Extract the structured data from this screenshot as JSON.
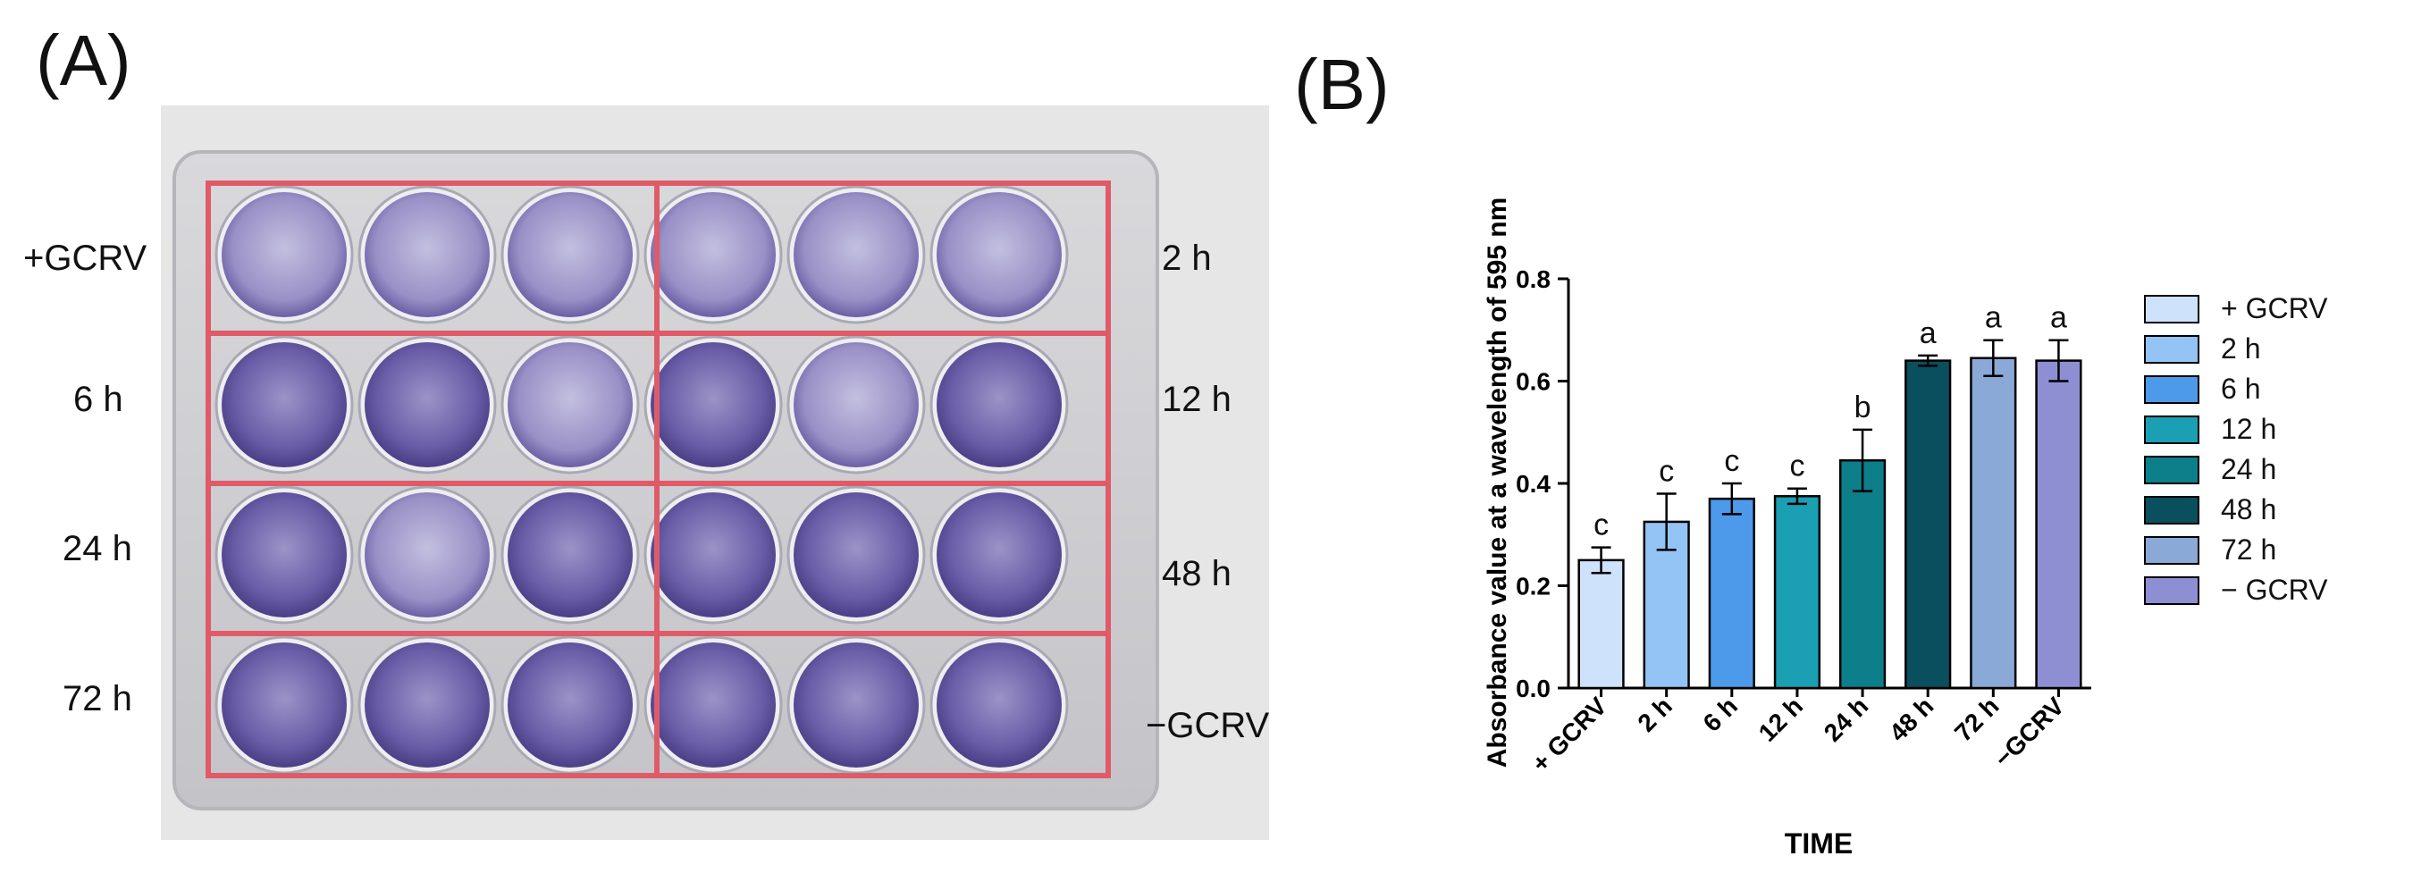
{
  "panels": {
    "a_label": "(A)",
    "b_label": "(B)"
  },
  "plate": {
    "row_labels_left": [
      "+GCRV",
      "6 h",
      "24 h",
      "72 h"
    ],
    "row_labels_right": [
      "2 h",
      "12 h",
      "48 h",
      "−GCRV"
    ],
    "well_color": "#5b4f9a",
    "box_color": "#e05a68"
  },
  "chart_data": {
    "type": "bar",
    "categories": [
      "+ GCRV",
      "2 h",
      "6 h",
      "12 h",
      "24 h",
      "48 h",
      "72 h",
      "−GCRV"
    ],
    "values": [
      0.25,
      0.325,
      0.37,
      0.375,
      0.445,
      0.64,
      0.645,
      0.64
    ],
    "errors": [
      0.025,
      0.055,
      0.03,
      0.015,
      0.06,
      0.01,
      0.035,
      0.04
    ],
    "significance": [
      "c",
      "c",
      "c",
      "c",
      "b",
      "a",
      "a",
      "a"
    ],
    "colors": [
      "#cfe2fb",
      "#93c4f5",
      "#4d99ea",
      "#1a9fb3",
      "#0c7f8a",
      "#0a4f5e",
      "#8aa9d6",
      "#8e8fd3"
    ],
    "ylim": [
      0.0,
      0.8
    ],
    "yticks": [
      "0.0",
      "0.2",
      "0.4",
      "0.6",
      "0.8"
    ],
    "ylabel": "Absorbance value at a wavelength of 595 nm",
    "xlabel": "TIME",
    "legend": [
      "+ GCRV",
      "2 h",
      "6 h",
      "12 h",
      "24 h",
      "48 h",
      "72 h",
      "− GCRV"
    ],
    "legend_position": "right"
  }
}
